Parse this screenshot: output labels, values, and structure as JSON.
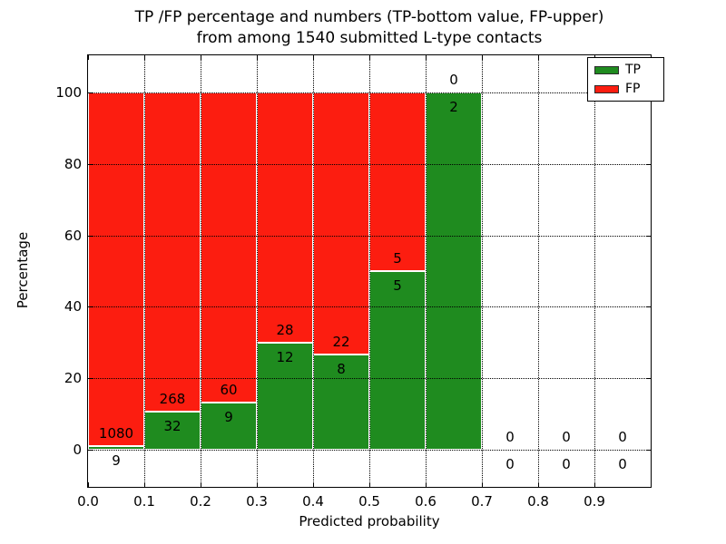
{
  "figure": {
    "title_line1": "TP /FP percentage and numbers (TP-bottom value, FP-upper)",
    "title_line2": "from among 1540 submitted L-type contacts"
  },
  "legend": {
    "entries": [
      {
        "label": "TP",
        "color": "#1f8b1f"
      },
      {
        "label": "FP",
        "color": "#fc1d10"
      }
    ]
  },
  "chart_data": {
    "type": "bar",
    "stacked": true,
    "title": "TP /FP percentage and numbers (TP-bottom value, FP-upper) from among 1540 submitted L-type contacts",
    "xlabel": "Predicted probability",
    "ylabel": "Percentage",
    "xlim": [
      0.0,
      1.0
    ],
    "ylim": [
      -10.5,
      110.5
    ],
    "xticks": [
      "0.0",
      "0.1",
      "0.2",
      "0.3",
      "0.4",
      "0.5",
      "0.6",
      "0.7",
      "0.8",
      "0.9"
    ],
    "xtick_values": [
      0.0,
      0.1,
      0.2,
      0.3,
      0.4,
      0.5,
      0.6,
      0.7,
      0.8,
      0.9
    ],
    "yticks": [
      "0",
      "20",
      "40",
      "60",
      "80",
      "100"
    ],
    "ytick_values": [
      0,
      20,
      40,
      60,
      80,
      100
    ],
    "grid": true,
    "legend_position": "upper right",
    "total_contacts": 1540,
    "colors": {
      "tp": "#1f8b1f",
      "fp": "#fc1d10",
      "edge": "#ffffff"
    },
    "series": [
      {
        "name": "TP",
        "values": [
          9,
          32,
          9,
          12,
          8,
          5,
          2,
          0,
          0,
          0
        ]
      },
      {
        "name": "FP",
        "values": [
          1080,
          268,
          60,
          28,
          22,
          5,
          0,
          0,
          0,
          0
        ]
      }
    ],
    "bins": [
      {
        "range": [
          0.0,
          0.1
        ],
        "tp": 9,
        "fp": 1080,
        "tp_pct": 0.83,
        "fp_pct": 99.17
      },
      {
        "range": [
          0.1,
          0.2
        ],
        "tp": 32,
        "fp": 268,
        "tp_pct": 10.67,
        "fp_pct": 89.33
      },
      {
        "range": [
          0.2,
          0.3
        ],
        "tp": 9,
        "fp": 60,
        "tp_pct": 13.04,
        "fp_pct": 86.96
      },
      {
        "range": [
          0.3,
          0.4
        ],
        "tp": 12,
        "fp": 28,
        "tp_pct": 30.0,
        "fp_pct": 70.0
      },
      {
        "range": [
          0.4,
          0.5
        ],
        "tp": 8,
        "fp": 22,
        "tp_pct": 26.67,
        "fp_pct": 73.33
      },
      {
        "range": [
          0.5,
          0.6
        ],
        "tp": 5,
        "fp": 5,
        "tp_pct": 50.0,
        "fp_pct": 50.0
      },
      {
        "range": [
          0.6,
          0.7
        ],
        "tp": 2,
        "fp": 0,
        "tp_pct": 100.0,
        "fp_pct": 0.0
      },
      {
        "range": [
          0.7,
          0.8
        ],
        "tp": 0,
        "fp": 0,
        "tp_pct": 0.0,
        "fp_pct": 0.0
      },
      {
        "range": [
          0.8,
          0.9
        ],
        "tp": 0,
        "fp": 0,
        "tp_pct": 0.0,
        "fp_pct": 0.0
      },
      {
        "range": [
          0.9,
          1.0
        ],
        "tp": 0,
        "fp": 0,
        "tp_pct": 0.0,
        "fp_pct": 0.0
      }
    ]
  }
}
